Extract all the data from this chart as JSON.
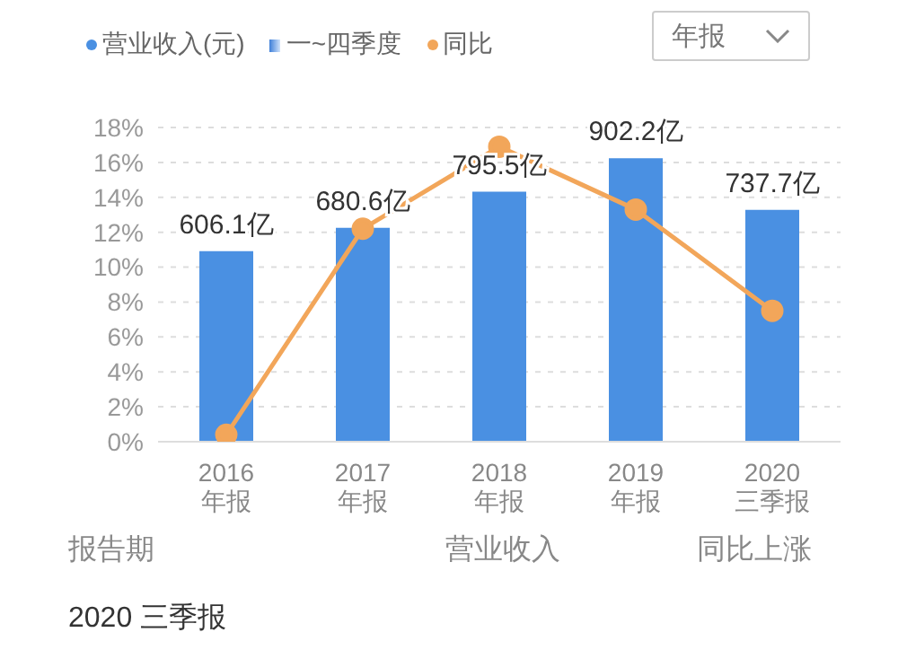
{
  "chart_data": {
    "type": "bar",
    "categories": [
      "2016\n年报",
      "2017\n年报",
      "2018\n年报",
      "2019\n年报",
      "2020\n三季报"
    ],
    "series": [
      {
        "name": "营业收入(元)",
        "color": "#4a90e2",
        "axis": "y2",
        "values": [
          606.1,
          680.6,
          795.5,
          902.2,
          737.7
        ],
        "value_labels": [
          "606.1亿",
          "680.6亿",
          "795.5亿",
          "902.2亿",
          "737.7亿"
        ]
      },
      {
        "name": "同比",
        "type": "line",
        "color": "#f2a65a",
        "marker": "circle",
        "values": [
          0.4,
          12.2,
          16.9,
          13.3,
          7.5
        ]
      }
    ],
    "ylim": [
      0,
      18
    ],
    "yticks": [
      {
        "value": 0,
        "label": "0%"
      },
      {
        "value": 2,
        "label": "2%"
      },
      {
        "value": 4,
        "label": "4%"
      },
      {
        "value": 6,
        "label": "6%"
      },
      {
        "value": 8,
        "label": "8%"
      },
      {
        "value": 10,
        "label": "10%"
      },
      {
        "value": 12,
        "label": "12%"
      },
      {
        "value": 14,
        "label": "14%"
      },
      {
        "value": 16,
        "label": "16%"
      },
      {
        "value": 18,
        "label": "18%"
      }
    ],
    "grid": "y",
    "legend": "top left",
    "annotations": [
      "一~四季度",
      "年报",
      "报告期",
      "营业收入",
      "同比上涨",
      "2020 三季报"
    ]
  }
}
